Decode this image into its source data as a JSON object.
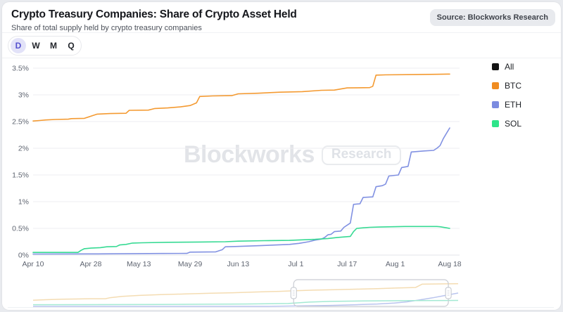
{
  "page": {
    "background": "#e9ebef",
    "card_background": "#ffffff"
  },
  "header": {
    "title": "Crypto Treasury Companies: Share of Crypto Asset Held",
    "subtitle": "Share of total supply held by crypto treasury companies",
    "source_badge": "Source: Blockworks Research"
  },
  "toolbar": {
    "intervals": [
      {
        "label": "D",
        "active": true
      },
      {
        "label": "W",
        "active": false
      },
      {
        "label": "M",
        "active": false
      },
      {
        "label": "Q",
        "active": false
      }
    ]
  },
  "watermark": {
    "brand": "Blockworks",
    "tag": "Research"
  },
  "legend": {
    "position": "right",
    "items": [
      {
        "label": "All",
        "color": "#141414"
      },
      {
        "label": "BTC",
        "color": "#f08c21"
      },
      {
        "label": "ETH",
        "color": "#7b8be0"
      },
      {
        "label": "SOL",
        "color": "#2ee58a"
      }
    ]
  },
  "chart_data": {
    "type": "line",
    "title": "Crypto Treasury Companies: Share of Crypto Asset Held",
    "subtitle": "Share of total supply held by crypto treasury companies",
    "x_unit": "date (day offset from Apr 10)",
    "x_domain_days": [
      0,
      130
    ],
    "x_ticks": [
      {
        "day": 0,
        "label": "Apr 10"
      },
      {
        "day": 18,
        "label": "Apr 28"
      },
      {
        "day": 33,
        "label": "May 13"
      },
      {
        "day": 49,
        "label": "May 29"
      },
      {
        "day": 64,
        "label": "Jun 13"
      },
      {
        "day": 82,
        "label": "Jul 1"
      },
      {
        "day": 98,
        "label": "Jul 17"
      },
      {
        "day": 113,
        "label": "Aug 1"
      },
      {
        "day": 130,
        "label": "Aug 18"
      }
    ],
    "y_axis": {
      "min": 0,
      "max": 3.5,
      "tick_step": 0.5,
      "unit": "%",
      "tick_labels": [
        "0%",
        "0.5%",
        "1%",
        "1.5%",
        "2%",
        "2.5%",
        "3%",
        "3.5%"
      ]
    },
    "grid": true,
    "legend_position": "right",
    "series": [
      {
        "name": "BTC",
        "color": "#f49a31",
        "points": [
          [
            0,
            2.51
          ],
          [
            2,
            2.52
          ],
          [
            4,
            2.53
          ],
          [
            7,
            2.54
          ],
          [
            11,
            2.545
          ],
          [
            12,
            2.555
          ],
          [
            16,
            2.56
          ],
          [
            18,
            2.6
          ],
          [
            20,
            2.64
          ],
          [
            24,
            2.65
          ],
          [
            29,
            2.655
          ],
          [
            30,
            2.71
          ],
          [
            36,
            2.715
          ],
          [
            38,
            2.745
          ],
          [
            42,
            2.755
          ],
          [
            46,
            2.775
          ],
          [
            49,
            2.8
          ],
          [
            51,
            2.85
          ],
          [
            52,
            2.97
          ],
          [
            56,
            2.98
          ],
          [
            62,
            2.985
          ],
          [
            64,
            3.02
          ],
          [
            70,
            3.03
          ],
          [
            77,
            3.05
          ],
          [
            84,
            3.06
          ],
          [
            90,
            3.085
          ],
          [
            94,
            3.09
          ],
          [
            98,
            3.13
          ],
          [
            105,
            3.135
          ],
          [
            106,
            3.16
          ],
          [
            107,
            3.37
          ],
          [
            110,
            3.375
          ],
          [
            120,
            3.38
          ],
          [
            126,
            3.385
          ],
          [
            130,
            3.39
          ]
        ]
      },
      {
        "name": "ETH",
        "color": "#8191e2",
        "points": [
          [
            0,
            0.02
          ],
          [
            20,
            0.022
          ],
          [
            40,
            0.03
          ],
          [
            48,
            0.032
          ],
          [
            49,
            0.055
          ],
          [
            57,
            0.06
          ],
          [
            59,
            0.1
          ],
          [
            60,
            0.155
          ],
          [
            63,
            0.16
          ],
          [
            70,
            0.175
          ],
          [
            76,
            0.19
          ],
          [
            80,
            0.2
          ],
          [
            83,
            0.22
          ],
          [
            86,
            0.25
          ],
          [
            88,
            0.28
          ],
          [
            90,
            0.3
          ],
          [
            91,
            0.33
          ],
          [
            92,
            0.38
          ],
          [
            93,
            0.39
          ],
          [
            94,
            0.44
          ],
          [
            96,
            0.45
          ],
          [
            97,
            0.52
          ],
          [
            98,
            0.56
          ],
          [
            99,
            0.6
          ],
          [
            100,
            0.95
          ],
          [
            102,
            0.96
          ],
          [
            103,
            1.08
          ],
          [
            106,
            1.09
          ],
          [
            107,
            1.28
          ],
          [
            109,
            1.3
          ],
          [
            110,
            1.33
          ],
          [
            111,
            1.48
          ],
          [
            114,
            1.5
          ],
          [
            115,
            1.64
          ],
          [
            117,
            1.66
          ],
          [
            118,
            1.93
          ],
          [
            122,
            1.95
          ],
          [
            125,
            1.96
          ],
          [
            126,
            2.0
          ],
          [
            127,
            2.05
          ],
          [
            128,
            2.18
          ],
          [
            130,
            2.38
          ]
        ]
      },
      {
        "name": "SOL",
        "color": "#36da93",
        "points": [
          [
            0,
            0.05
          ],
          [
            14,
            0.05
          ],
          [
            15,
            0.09
          ],
          [
            16,
            0.12
          ],
          [
            18,
            0.13
          ],
          [
            21,
            0.14
          ],
          [
            23,
            0.155
          ],
          [
            26,
            0.16
          ],
          [
            27,
            0.19
          ],
          [
            29,
            0.2
          ],
          [
            31,
            0.225
          ],
          [
            34,
            0.23
          ],
          [
            42,
            0.24
          ],
          [
            52,
            0.245
          ],
          [
            60,
            0.25
          ],
          [
            64,
            0.26
          ],
          [
            72,
            0.27
          ],
          [
            80,
            0.275
          ],
          [
            84,
            0.285
          ],
          [
            88,
            0.295
          ],
          [
            92,
            0.31
          ],
          [
            95,
            0.33
          ],
          [
            97,
            0.34
          ],
          [
            99,
            0.35
          ],
          [
            100,
            0.44
          ],
          [
            101,
            0.5
          ],
          [
            103,
            0.51
          ],
          [
            105,
            0.52
          ],
          [
            108,
            0.525
          ],
          [
            112,
            0.53
          ],
          [
            116,
            0.535
          ],
          [
            126,
            0.535
          ],
          [
            127,
            0.53
          ],
          [
            130,
            0.5
          ]
        ]
      }
    ],
    "minimap": {
      "series": [
        {
          "name": "BTC",
          "color": "#f4dcb2",
          "points": [
            [
              0,
              0.26
            ],
            [
              0.03,
              0.28
            ],
            [
              0.07,
              0.3
            ],
            [
              0.1,
              0.31
            ],
            [
              0.14,
              0.32
            ],
            [
              0.17,
              0.32
            ],
            [
              0.18,
              0.36
            ],
            [
              0.21,
              0.42
            ],
            [
              0.25,
              0.46
            ],
            [
              0.3,
              0.49
            ],
            [
              0.36,
              0.52
            ],
            [
              0.42,
              0.55
            ],
            [
              0.47,
              0.57
            ],
            [
              0.52,
              0.6
            ],
            [
              0.58,
              0.63
            ],
            [
              0.61,
              0.65
            ],
            [
              0.66,
              0.68
            ],
            [
              0.71,
              0.7
            ],
            [
              0.76,
              0.72
            ],
            [
              0.81,
              0.74
            ],
            [
              0.86,
              0.77
            ],
            [
              0.9,
              0.79
            ],
            [
              0.915,
              0.93
            ],
            [
              0.96,
              0.94
            ],
            [
              1,
              0.95
            ]
          ]
        },
        {
          "name": "ETH",
          "color": "#b9c4ee",
          "points": [
            [
              0,
              0.0
            ],
            [
              0.55,
              0.0
            ],
            [
              0.63,
              0.02
            ],
            [
              0.7,
              0.04
            ],
            [
              0.76,
              0.07
            ],
            [
              0.81,
              0.1
            ],
            [
              0.85,
              0.14
            ],
            [
              0.88,
              0.19
            ],
            [
              0.91,
              0.27
            ],
            [
              0.94,
              0.36
            ],
            [
              0.97,
              0.46
            ],
            [
              1,
              0.56
            ]
          ]
        },
        {
          "name": "SOL",
          "color": "#a3e9d3",
          "points": [
            [
              0,
              0.07
            ],
            [
              0.3,
              0.08
            ],
            [
              0.5,
              0.1
            ],
            [
              0.6,
              0.12
            ],
            [
              0.65,
              0.18
            ],
            [
              0.7,
              0.21
            ],
            [
              0.78,
              0.23
            ],
            [
              0.9,
              0.24
            ],
            [
              1,
              0.25
            ]
          ]
        }
      ],
      "brush": {
        "start_frac": 0.613,
        "end_frac": 0.977
      }
    }
  }
}
